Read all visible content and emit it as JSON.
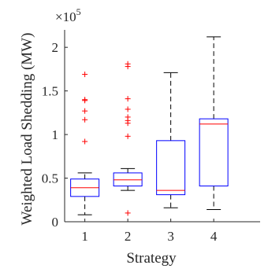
{
  "chart_data": {
    "type": "boxplot",
    "xlabel": "Strategy",
    "ylabel": "Weighted Load Shedding (MW)",
    "y_multiplier_label": "×10",
    "y_multiplier_exponent": "5",
    "ylim": [
      0,
      2.2
    ],
    "yticks": [
      0,
      0.5,
      1,
      1.5,
      2
    ],
    "ytick_labels": [
      "0",
      "0.5",
      "1",
      "1.5",
      "2"
    ],
    "categories": [
      "1",
      "2",
      "3",
      "4"
    ],
    "grid": false,
    "colors": {
      "box": "#0000ff",
      "median": "#ff0000",
      "whisker": "#000000",
      "outlier": "#ff0000",
      "axis": "#262626"
    },
    "boxes": [
      {
        "category": "1",
        "whisker_low": 0.08,
        "q1": 0.29,
        "median": 0.39,
        "q3": 0.49,
        "whisker_high": 0.56,
        "outliers": [
          1.69,
          1.4,
          1.39,
          1.27,
          1.17,
          0.92
        ]
      },
      {
        "category": "2",
        "whisker_low": 0.36,
        "q1": 0.41,
        "median": 0.48,
        "q3": 0.56,
        "whisker_high": 0.61,
        "outliers": [
          1.81,
          1.78,
          1.41,
          1.29,
          1.2,
          1.16,
          1.13,
          0.98,
          0.1
        ]
      },
      {
        "category": "3",
        "whisker_low": 0.16,
        "q1": 0.31,
        "median": 0.36,
        "q3": 0.93,
        "whisker_high": 1.71,
        "outliers": []
      },
      {
        "category": "4",
        "whisker_low": 0.14,
        "q1": 0.41,
        "median": 1.12,
        "q3": 1.18,
        "whisker_high": 2.12,
        "outliers": []
      }
    ]
  }
}
